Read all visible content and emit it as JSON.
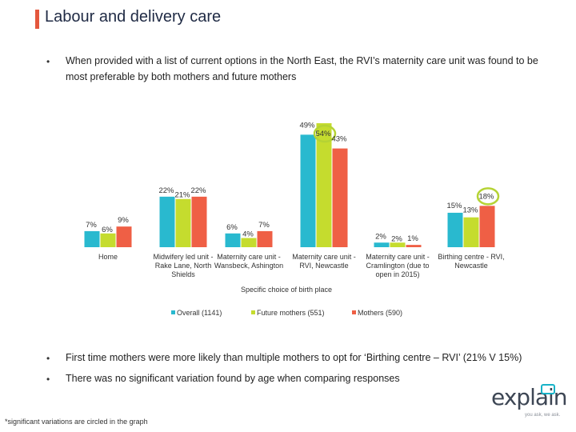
{
  "title": "Labour and delivery care",
  "intro_bullet": "When provided with a list of current options in the North East, the RVI’s maternity care unit was found to be most preferable by both mothers and future mothers",
  "bullets": [
    "First time mothers were more likely than multiple mothers to opt for ‘Birthing centre – RVI’ (21% V 15%)",
    "There was no significant variation found by age when comparing responses"
  ],
  "bullet_symbol": "•",
  "footnote": "*significant variations are circled in the graph",
  "logo": {
    "word": "explain",
    "tagline": "you ask, we ask."
  },
  "colors": {
    "overall": "#29b9cf",
    "future": "#c5dc2e",
    "mothers": "#ef5f45",
    "circle": "#b5d334",
    "accent": "#e4573d"
  },
  "chart_data": {
    "type": "bar",
    "title": "",
    "xlabel": "Specific choice of birth place",
    "ylabel": "",
    "ylim": [
      0,
      60
    ],
    "grid": false,
    "legend_position": "bottom",
    "categories": [
      [
        "Home"
      ],
      [
        "Midwifery led unit -",
        "Rake Lane, North",
        "Shields"
      ],
      [
        "Maternity care unit -",
        "Wansbeck, Ashington"
      ],
      [
        "Maternity care unit -",
        "RVI, Newcastle"
      ],
      [
        "Maternity care unit -",
        "Cramlington (due to",
        "open in 2015)"
      ],
      [
        "Birthing centre - RVI,",
        "Newcastle"
      ]
    ],
    "series": [
      {
        "name": "Overall (1141)",
        "values": [
          7,
          22,
          6,
          49,
          2,
          15
        ],
        "labels": [
          "7%",
          "22%",
          "6%",
          "49%",
          "2%",
          "15%"
        ]
      },
      {
        "name": "Future mothers (551)",
        "values": [
          6,
          21,
          4,
          54,
          2,
          13
        ],
        "labels": [
          "6%",
          "21%",
          "4%",
          "54%",
          "2%",
          "13%"
        ]
      },
      {
        "name": "Mothers (590)",
        "values": [
          9,
          22,
          7,
          43,
          1,
          18
        ],
        "labels": [
          "9%",
          "22%",
          "7%",
          "43%",
          "1%",
          "18%"
        ]
      }
    ],
    "circled": [
      {
        "series": 1,
        "category": 3
      },
      {
        "series": 2,
        "category": 5
      }
    ]
  }
}
